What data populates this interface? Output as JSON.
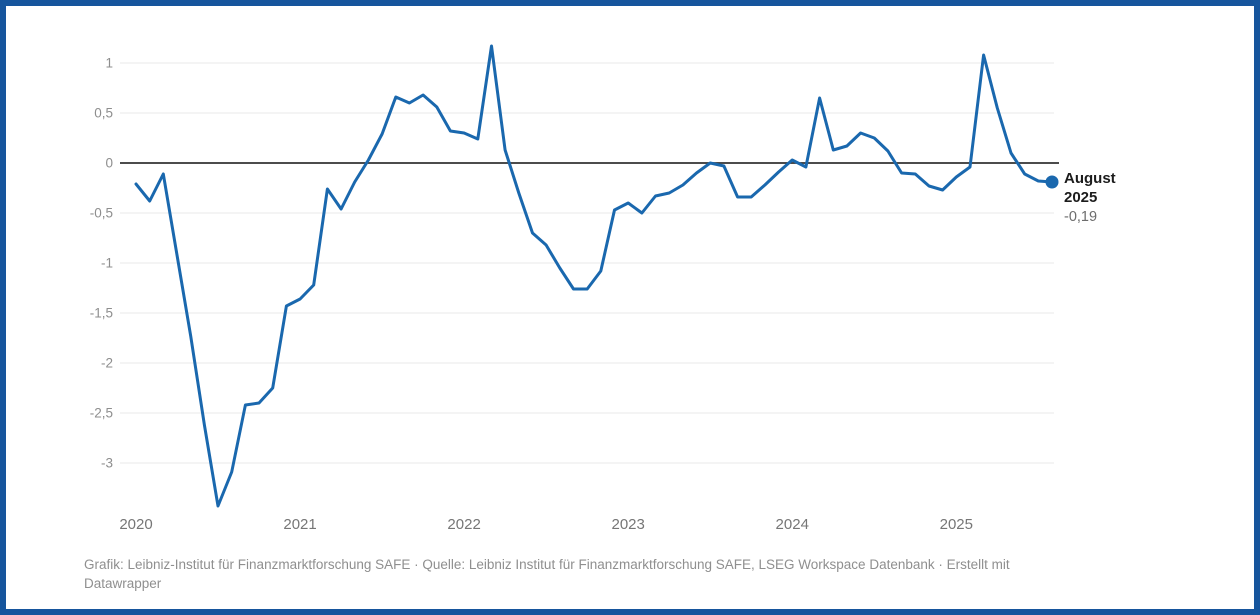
{
  "frame": {
    "border_color": "#16559d",
    "background_color": "#ffffff"
  },
  "chart_data": {
    "type": "line",
    "title": "",
    "frequency": "monthly",
    "x_range": [
      "2020-01",
      "2025-08"
    ],
    "ylim": [
      -3.5,
      1.25
    ],
    "grid": "horizontal",
    "legend": "none",
    "line_color": "#1a68ae",
    "grid_color": "#e9e9e9",
    "zero_line_color": "#333333",
    "y_tick_color": "#8e8e8e",
    "x_tick_color": "#767676",
    "x_tick_labels": [
      "2020",
      "2021",
      "2022",
      "2023",
      "2024",
      "2025"
    ],
    "y_ticks": [
      {
        "value": 1,
        "label": "1"
      },
      {
        "value": 0.5,
        "label": "0,5"
      },
      {
        "value": 0,
        "label": "0"
      },
      {
        "value": -0.5,
        "label": "-0,5"
      },
      {
        "value": -1,
        "label": "-1"
      },
      {
        "value": -1.5,
        "label": "-1,5"
      },
      {
        "value": -2,
        "label": "-2"
      },
      {
        "value": -2.5,
        "label": "-2,5"
      },
      {
        "value": -3,
        "label": "-3"
      }
    ],
    "months": [
      "2020-01",
      "2020-02",
      "2020-03",
      "2020-04",
      "2020-05",
      "2020-06",
      "2020-07",
      "2020-08",
      "2020-09",
      "2020-10",
      "2020-11",
      "2020-12",
      "2021-01",
      "2021-02",
      "2021-03",
      "2021-04",
      "2021-05",
      "2021-06",
      "2021-07",
      "2021-08",
      "2021-09",
      "2021-10",
      "2021-11",
      "2021-12",
      "2022-01",
      "2022-02",
      "2022-03",
      "2022-04",
      "2022-05",
      "2022-06",
      "2022-07",
      "2022-08",
      "2022-09",
      "2022-10",
      "2022-11",
      "2022-12",
      "2023-01",
      "2023-02",
      "2023-03",
      "2023-04",
      "2023-05",
      "2023-06",
      "2023-07",
      "2023-08",
      "2023-09",
      "2023-10",
      "2023-11",
      "2023-12",
      "2024-01",
      "2024-02",
      "2024-03",
      "2024-04",
      "2024-05",
      "2024-06",
      "2024-07",
      "2024-08",
      "2024-09",
      "2024-10",
      "2024-11",
      "2024-12",
      "2025-01",
      "2025-02",
      "2025-03",
      "2025-04",
      "2025-05",
      "2025-06",
      "2025-07",
      "2025-08"
    ],
    "values": [
      -0.21,
      -0.38,
      -0.11,
      -0.92,
      -1.73,
      -2.62,
      -3.43,
      -3.09,
      -2.42,
      -2.4,
      -2.25,
      -1.43,
      -1.36,
      -1.22,
      -0.26,
      -0.46,
      -0.19,
      0.03,
      0.29,
      0.66,
      0.6,
      0.68,
      0.56,
      0.32,
      0.3,
      0.24,
      1.17,
      0.13,
      -0.3,
      -0.7,
      -0.82,
      -1.05,
      -1.26,
      -1.26,
      -1.08,
      -0.47,
      -0.4,
      -0.5,
      -0.33,
      -0.3,
      -0.22,
      -0.1,
      0.0,
      -0.03,
      -0.34,
      -0.34,
      -0.22,
      -0.09,
      0.03,
      -0.04,
      0.65,
      0.13,
      0.17,
      0.3,
      0.25,
      0.12,
      -0.1,
      -0.11,
      -0.23,
      -0.27,
      -0.14,
      -0.04,
      1.08,
      0.55,
      0.1,
      -0.11,
      -0.18,
      -0.19
    ],
    "end_annotation": {
      "date_line1": "August",
      "date_line2": "2025",
      "value_label": "-0,19",
      "value": -0.19
    }
  },
  "footer": {
    "line1": "Grafik: Leibniz-Institut für Finanzmarktforschung SAFE · Quelle: Leibniz Institut für Finanzmarktforschung SAFE, LSEG Workspace Datenbank · Erstellt mit",
    "line2": "Datawrapper"
  }
}
